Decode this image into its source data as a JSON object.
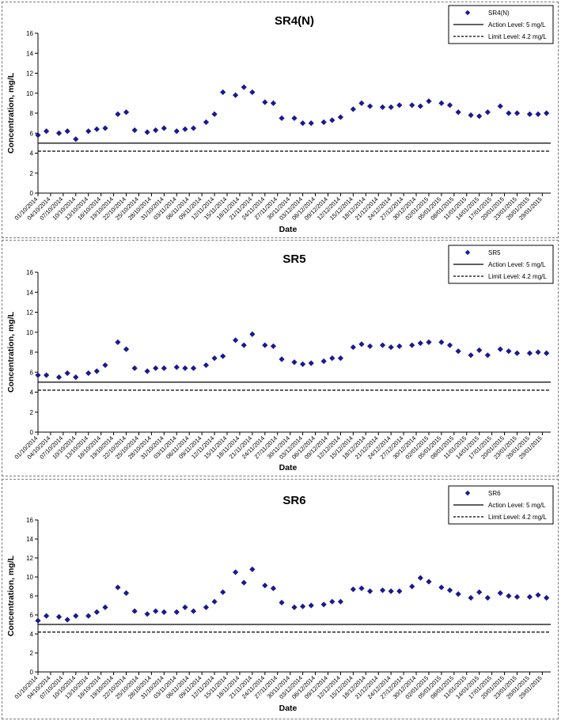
{
  "chart_data": [
    {
      "type": "scatter",
      "title": "SR4(N)",
      "xlabel": "Date",
      "ylabel": "Concentration, mg/L",
      "ylim": [
        0,
        16
      ],
      "yticks": [
        "0",
        "2",
        "4",
        "6",
        "8",
        "10",
        "12",
        "14",
        "16"
      ],
      "xticks": [
        "01/10/2014",
        "04/10/2014",
        "07/10/2014",
        "10/10/2014",
        "13/10/2014",
        "16/10/2014",
        "19/10/2014",
        "22/10/2014",
        "25/10/2014",
        "28/10/2014",
        "31/10/2014",
        "03/11/2014",
        "06/11/2014",
        "09/11/2014",
        "12/11/2014",
        "15/11/2014",
        "18/11/2014",
        "21/11/2014",
        "24/11/2014",
        "27/11/2014",
        "30/11/2014",
        "03/12/2014",
        "06/12/2014",
        "09/12/2014",
        "12/12/2014",
        "15/12/2014",
        "18/12/2014",
        "21/12/2014",
        "24/12/2014",
        "27/12/2014",
        "30/12/2014",
        "02/01/2015",
        "05/01/2015",
        "08/01/2015",
        "11/01/2015",
        "14/01/2015",
        "17/01/2015",
        "20/01/2015",
        "23/01/2015",
        "26/01/2015",
        "29/01/2015"
      ],
      "x_range": [
        "01/10/2014",
        "31/01/2015"
      ],
      "grid": false,
      "legend_position": "top-right",
      "series": [
        {
          "name": "SR4(N)",
          "marker": "diamond",
          "color": "#1a1a8c",
          "points": [
            {
              "x": "01/10/2014",
              "y": 5.8
            },
            {
              "x": "03/10/2014",
              "y": 6.2
            },
            {
              "x": "06/10/2014",
              "y": 6.0
            },
            {
              "x": "08/10/2014",
              "y": 6.2
            },
            {
              "x": "10/10/2014",
              "y": 5.4
            },
            {
              "x": "13/10/2014",
              "y": 6.2
            },
            {
              "x": "15/10/2014",
              "y": 6.4
            },
            {
              "x": "17/10/2014",
              "y": 6.5
            },
            {
              "x": "20/10/2014",
              "y": 7.9
            },
            {
              "x": "22/10/2014",
              "y": 8.1
            },
            {
              "x": "24/10/2014",
              "y": 6.3
            },
            {
              "x": "27/10/2014",
              "y": 6.1
            },
            {
              "x": "29/10/2014",
              "y": 6.3
            },
            {
              "x": "31/10/2014",
              "y": 6.5
            },
            {
              "x": "03/11/2014",
              "y": 6.2
            },
            {
              "x": "05/11/2014",
              "y": 6.4
            },
            {
              "x": "07/11/2014",
              "y": 6.5
            },
            {
              "x": "10/11/2014",
              "y": 7.1
            },
            {
              "x": "12/11/2014",
              "y": 7.9
            },
            {
              "x": "14/11/2014",
              "y": 10.1
            },
            {
              "x": "17/11/2014",
              "y": 9.8
            },
            {
              "x": "19/11/2014",
              "y": 10.6
            },
            {
              "x": "21/11/2014",
              "y": 10.1
            },
            {
              "x": "24/11/2014",
              "y": 9.1
            },
            {
              "x": "26/11/2014",
              "y": 9.0
            },
            {
              "x": "28/11/2014",
              "y": 7.5
            },
            {
              "x": "01/12/2014",
              "y": 7.5
            },
            {
              "x": "03/12/2014",
              "y": 7.0
            },
            {
              "x": "05/12/2014",
              "y": 7.0
            },
            {
              "x": "08/12/2014",
              "y": 7.1
            },
            {
              "x": "10/12/2014",
              "y": 7.3
            },
            {
              "x": "12/12/2014",
              "y": 7.6
            },
            {
              "x": "15/12/2014",
              "y": 8.4
            },
            {
              "x": "17/12/2014",
              "y": 9.0
            },
            {
              "x": "19/12/2014",
              "y": 8.7
            },
            {
              "x": "22/12/2014",
              "y": 8.6
            },
            {
              "x": "24/12/2014",
              "y": 8.6
            },
            {
              "x": "26/12/2014",
              "y": 8.8
            },
            {
              "x": "29/12/2014",
              "y": 8.8
            },
            {
              "x": "31/12/2014",
              "y": 8.7
            },
            {
              "x": "02/01/2015",
              "y": 9.2
            },
            {
              "x": "05/01/2015",
              "y": 9.0
            },
            {
              "x": "07/01/2015",
              "y": 8.8
            },
            {
              "x": "09/01/2015",
              "y": 8.1
            },
            {
              "x": "12/01/2015",
              "y": 7.8
            },
            {
              "x": "14/01/2015",
              "y": 7.7
            },
            {
              "x": "16/01/2015",
              "y": 8.1
            },
            {
              "x": "19/01/2015",
              "y": 8.7
            },
            {
              "x": "21/01/2015",
              "y": 8.0
            },
            {
              "x": "23/01/2015",
              "y": 8.0
            },
            {
              "x": "26/01/2015",
              "y": 7.9
            },
            {
              "x": "28/01/2015",
              "y": 7.9
            },
            {
              "x": "30/01/2015",
              "y": 8.0
            }
          ]
        }
      ],
      "reference_lines": [
        {
          "name": "Action Level: 5 mg/L",
          "value": 5,
          "style": "solid"
        },
        {
          "name": "Limit Level: 4.2 mg/L",
          "value": 4.2,
          "style": "dashed"
        }
      ]
    },
    {
      "type": "scatter",
      "title": "SR5",
      "xlabel": "Date",
      "ylabel": "Concentration, mg/L",
      "ylim": [
        0,
        16
      ],
      "yticks": [
        "0",
        "2",
        "4",
        "6",
        "8",
        "10",
        "12",
        "14",
        "16"
      ],
      "xticks": [
        "01/10/2014",
        "04/10/2014",
        "07/10/2014",
        "10/10/2014",
        "13/10/2014",
        "16/10/2014",
        "19/10/2014",
        "22/10/2014",
        "25/10/2014",
        "28/10/2014",
        "31/10/2014",
        "03/11/2014",
        "06/11/2014",
        "09/11/2014",
        "12/11/2014",
        "15/11/2014",
        "18/11/2014",
        "21/11/2014",
        "24/11/2014",
        "27/11/2014",
        "30/11/2014",
        "03/12/2014",
        "06/12/2014",
        "09/12/2014",
        "12/12/2014",
        "15/12/2014",
        "18/12/2014",
        "21/12/2014",
        "24/12/2014",
        "27/12/2014",
        "30/12/2014",
        "02/01/2015",
        "05/01/2015",
        "08/01/2015",
        "11/01/2015",
        "14/01/2015",
        "17/01/2015",
        "20/01/2015",
        "23/01/2015",
        "26/01/2015",
        "29/01/2015"
      ],
      "x_range": [
        "01/10/2014",
        "31/01/2015"
      ],
      "grid": false,
      "legend_position": "top-right",
      "series": [
        {
          "name": "SR5",
          "marker": "diamond",
          "color": "#1a1a8c",
          "points": [
            {
              "x": "01/10/2014",
              "y": 5.7
            },
            {
              "x": "03/10/2014",
              "y": 5.7
            },
            {
              "x": "06/10/2014",
              "y": 5.5
            },
            {
              "x": "08/10/2014",
              "y": 5.9
            },
            {
              "x": "10/10/2014",
              "y": 5.5
            },
            {
              "x": "13/10/2014",
              "y": 5.9
            },
            {
              "x": "15/10/2014",
              "y": 6.1
            },
            {
              "x": "17/10/2014",
              "y": 6.7
            },
            {
              "x": "20/10/2014",
              "y": 9.0
            },
            {
              "x": "22/10/2014",
              "y": 8.3
            },
            {
              "x": "24/10/2014",
              "y": 6.4
            },
            {
              "x": "27/10/2014",
              "y": 6.1
            },
            {
              "x": "29/10/2014",
              "y": 6.4
            },
            {
              "x": "31/10/2014",
              "y": 6.4
            },
            {
              "x": "03/11/2014",
              "y": 6.5
            },
            {
              "x": "05/11/2014",
              "y": 6.4
            },
            {
              "x": "07/11/2014",
              "y": 6.4
            },
            {
              "x": "10/11/2014",
              "y": 6.7
            },
            {
              "x": "12/11/2014",
              "y": 7.4
            },
            {
              "x": "14/11/2014",
              "y": 7.6
            },
            {
              "x": "17/11/2014",
              "y": 9.2
            },
            {
              "x": "19/11/2014",
              "y": 8.7
            },
            {
              "x": "21/11/2014",
              "y": 9.8
            },
            {
              "x": "24/11/2014",
              "y": 8.7
            },
            {
              "x": "26/11/2014",
              "y": 8.6
            },
            {
              "x": "28/11/2014",
              "y": 7.3
            },
            {
              "x": "01/12/2014",
              "y": 7.0
            },
            {
              "x": "03/12/2014",
              "y": 6.8
            },
            {
              "x": "05/12/2014",
              "y": 6.9
            },
            {
              "x": "08/12/2014",
              "y": 7.1
            },
            {
              "x": "10/12/2014",
              "y": 7.4
            },
            {
              "x": "12/12/2014",
              "y": 7.4
            },
            {
              "x": "15/12/2014",
              "y": 8.5
            },
            {
              "x": "17/12/2014",
              "y": 8.8
            },
            {
              "x": "19/12/2014",
              "y": 8.6
            },
            {
              "x": "22/12/2014",
              "y": 8.7
            },
            {
              "x": "24/12/2014",
              "y": 8.5
            },
            {
              "x": "26/12/2014",
              "y": 8.6
            },
            {
              "x": "29/12/2014",
              "y": 8.7
            },
            {
              "x": "31/12/2014",
              "y": 8.9
            },
            {
              "x": "02/01/2015",
              "y": 9.0
            },
            {
              "x": "05/01/2015",
              "y": 9.0
            },
            {
              "x": "07/01/2015",
              "y": 8.7
            },
            {
              "x": "09/01/2015",
              "y": 8.1
            },
            {
              "x": "12/01/2015",
              "y": 7.7
            },
            {
              "x": "14/01/2015",
              "y": 8.2
            },
            {
              "x": "16/01/2015",
              "y": 7.7
            },
            {
              "x": "19/01/2015",
              "y": 8.3
            },
            {
              "x": "21/01/2015",
              "y": 8.1
            },
            {
              "x": "23/01/2015",
              "y": 7.9
            },
            {
              "x": "26/01/2015",
              "y": 7.9
            },
            {
              "x": "28/01/2015",
              "y": 8.0
            },
            {
              "x": "30/01/2015",
              "y": 7.9
            }
          ]
        }
      ],
      "reference_lines": [
        {
          "name": "Action Level: 5 mg/L",
          "value": 5,
          "style": "solid"
        },
        {
          "name": "Limit Level: 4.2 mg/L",
          "value": 4.2,
          "style": "dashed"
        }
      ]
    },
    {
      "type": "scatter",
      "title": "SR6",
      "xlabel": "Date",
      "ylabel": "Concentration, mg/L",
      "ylim": [
        0,
        16
      ],
      "yticks": [
        "0",
        "2",
        "4",
        "6",
        "8",
        "10",
        "12",
        "14",
        "16"
      ],
      "xticks": [
        "01/10/2014",
        "04/10/2014",
        "07/10/2014",
        "10/10/2014",
        "13/10/2014",
        "16/10/2014",
        "19/10/2014",
        "22/10/2014",
        "25/10/2014",
        "28/10/2014",
        "31/10/2014",
        "03/11/2014",
        "06/11/2014",
        "09/11/2014",
        "12/11/2014",
        "15/11/2014",
        "18/11/2014",
        "21/11/2014",
        "24/11/2014",
        "27/11/2014",
        "30/11/2014",
        "03/12/2014",
        "06/12/2014",
        "09/12/2014",
        "12/12/2014",
        "15/12/2014",
        "18/12/2014",
        "21/12/2014",
        "24/12/2014",
        "27/12/2014",
        "30/12/2014",
        "02/01/2015",
        "05/01/2015",
        "08/01/2015",
        "11/01/2015",
        "14/01/2015",
        "17/01/2015",
        "20/01/2015",
        "23/01/2015",
        "26/01/2015",
        "29/01/2015"
      ],
      "x_range": [
        "01/10/2014",
        "31/01/2015"
      ],
      "grid": false,
      "legend_position": "top-right",
      "series": [
        {
          "name": "SR6",
          "marker": "diamond",
          "color": "#1a1a8c",
          "points": [
            {
              "x": "01/10/2014",
              "y": 5.4
            },
            {
              "x": "03/10/2014",
              "y": 5.9
            },
            {
              "x": "06/10/2014",
              "y": 5.8
            },
            {
              "x": "08/10/2014",
              "y": 5.5
            },
            {
              "x": "10/10/2014",
              "y": 5.9
            },
            {
              "x": "13/10/2014",
              "y": 5.9
            },
            {
              "x": "15/10/2014",
              "y": 6.3
            },
            {
              "x": "17/10/2014",
              "y": 6.8
            },
            {
              "x": "20/10/2014",
              "y": 8.9
            },
            {
              "x": "22/10/2014",
              "y": 8.3
            },
            {
              "x": "24/10/2014",
              "y": 6.4
            },
            {
              "x": "27/10/2014",
              "y": 6.1
            },
            {
              "x": "29/10/2014",
              "y": 6.4
            },
            {
              "x": "31/10/2014",
              "y": 6.3
            },
            {
              "x": "03/11/2014",
              "y": 6.3
            },
            {
              "x": "05/11/2014",
              "y": 6.8
            },
            {
              "x": "07/11/2014",
              "y": 6.4
            },
            {
              "x": "10/11/2014",
              "y": 6.8
            },
            {
              "x": "12/11/2014",
              "y": 7.4
            },
            {
              "x": "14/11/2014",
              "y": 8.4
            },
            {
              "x": "17/11/2014",
              "y": 10.5
            },
            {
              "x": "19/11/2014",
              "y": 9.4
            },
            {
              "x": "21/11/2014",
              "y": 10.8
            },
            {
              "x": "24/11/2014",
              "y": 9.1
            },
            {
              "x": "26/11/2014",
              "y": 8.8
            },
            {
              "x": "28/11/2014",
              "y": 7.3
            },
            {
              "x": "01/12/2014",
              "y": 6.8
            },
            {
              "x": "03/12/2014",
              "y": 6.9
            },
            {
              "x": "05/12/2014",
              "y": 7.0
            },
            {
              "x": "08/12/2014",
              "y": 7.1
            },
            {
              "x": "10/12/2014",
              "y": 7.4
            },
            {
              "x": "12/12/2014",
              "y": 7.4
            },
            {
              "x": "15/12/2014",
              "y": 8.7
            },
            {
              "x": "17/12/2014",
              "y": 8.8
            },
            {
              "x": "19/12/2014",
              "y": 8.5
            },
            {
              "x": "22/12/2014",
              "y": 8.6
            },
            {
              "x": "24/12/2014",
              "y": 8.5
            },
            {
              "x": "26/12/2014",
              "y": 8.5
            },
            {
              "x": "29/12/2014",
              "y": 9.0
            },
            {
              "x": "31/12/2014",
              "y": 9.9
            },
            {
              "x": "02/01/2015",
              "y": 9.5
            },
            {
              "x": "05/01/2015",
              "y": 8.9
            },
            {
              "x": "07/01/2015",
              "y": 8.6
            },
            {
              "x": "09/01/2015",
              "y": 8.2
            },
            {
              "x": "12/01/2015",
              "y": 7.8
            },
            {
              "x": "14/01/2015",
              "y": 8.4
            },
            {
              "x": "16/01/2015",
              "y": 7.8
            },
            {
              "x": "19/01/2015",
              "y": 8.3
            },
            {
              "x": "21/01/2015",
              "y": 8.0
            },
            {
              "x": "23/01/2015",
              "y": 7.9
            },
            {
              "x": "26/01/2015",
              "y": 7.9
            },
            {
              "x": "28/01/2015",
              "y": 8.1
            },
            {
              "x": "30/01/2015",
              "y": 7.8
            }
          ]
        }
      ],
      "reference_lines": [
        {
          "name": "Action Level: 5 mg/L",
          "value": 5,
          "style": "solid"
        },
        {
          "name": "Limit Level: 4.2 mg/L",
          "value": 4.2,
          "style": "dashed"
        }
      ]
    }
  ]
}
